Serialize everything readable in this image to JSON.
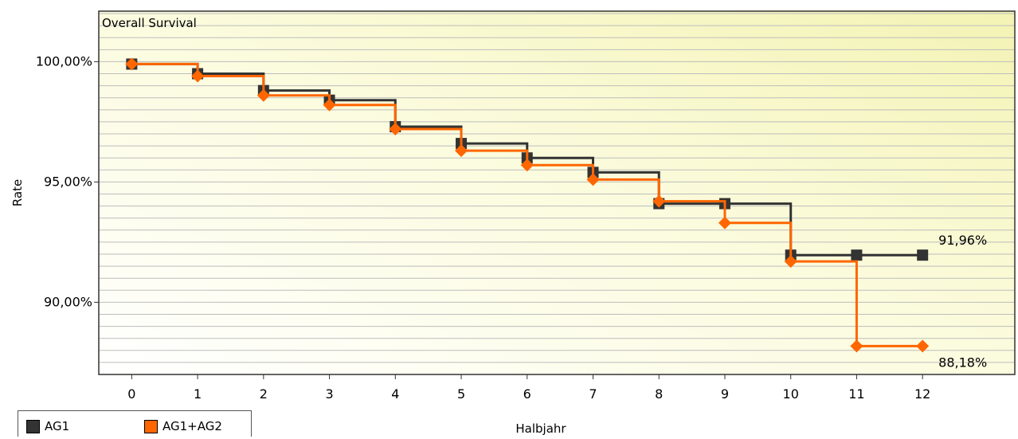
{
  "chart_data": {
    "type": "line",
    "title": "Overall Survival",
    "xlabel": "Halbjahr",
    "ylabel": "Rate",
    "x": [
      0,
      1,
      2,
      3,
      4,
      5,
      6,
      7,
      8,
      9,
      10,
      11,
      12
    ],
    "xlim": [
      -0.5,
      13.4
    ],
    "ylim": [
      87.0,
      102.1
    ],
    "y_ticks": [
      90,
      95,
      100
    ],
    "y_tick_labels": [
      "90,00%",
      "95,00%",
      "100,00%"
    ],
    "x_tick_labels": [
      "0",
      "1",
      "2",
      "3",
      "4",
      "5",
      "6",
      "7",
      "8",
      "9",
      "10",
      "11",
      "12"
    ],
    "step": true,
    "grid": true,
    "legend_position": "bottom-left",
    "series": [
      {
        "name": "AG1",
        "color": "#333333",
        "marker": "square",
        "values": [
          99.9,
          99.5,
          98.8,
          98.4,
          97.3,
          96.6,
          96.0,
          95.4,
          94.1,
          94.1,
          91.96,
          91.96,
          91.96
        ],
        "end_label": "91,96%"
      },
      {
        "name": "AG1+AG2",
        "color": "#ff6600",
        "marker": "diamond",
        "values": [
          99.9,
          99.4,
          98.6,
          98.2,
          97.2,
          96.3,
          95.7,
          95.1,
          94.2,
          93.3,
          91.7,
          88.18,
          88.18
        ],
        "end_label": "88,18%"
      }
    ]
  }
}
